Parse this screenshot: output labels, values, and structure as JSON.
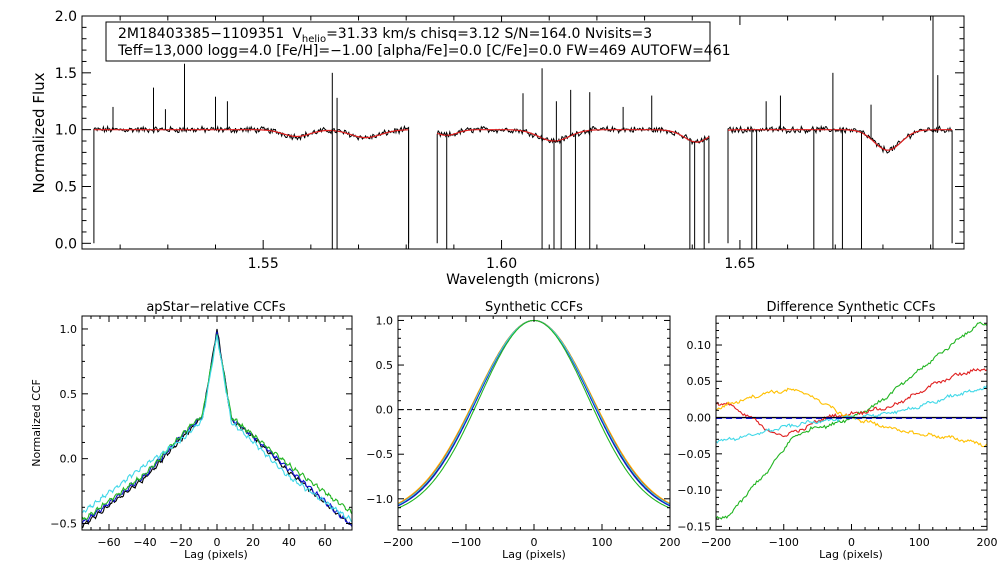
{
  "chart_data": [
    {
      "type": "line",
      "id": "spectrum",
      "xlabel": "Wavelength (microns)",
      "ylabel": "Normalized Flux",
      "xlim": [
        1.512,
        1.697
      ],
      "ylim": [
        -0.05,
        2.0
      ],
      "xticks": [
        1.55,
        1.6,
        1.65
      ],
      "xtick_labels": [
        "1.55",
        "1.60",
        "1.65"
      ],
      "yticks": [
        0.0,
        0.5,
        1.0,
        1.5,
        2.0
      ],
      "ytick_labels": [
        "0.0",
        "0.5",
        "1.0",
        "1.5",
        "2.0"
      ],
      "info_box": {
        "star_id": "2M18403385−1109351",
        "vhelio_label": "V",
        "vhelio_sub": "helio",
        "line1_rest": "=31.33 km/s  chisq=3.12  S/N=164.0  Nvisits=3",
        "line2": "Teff=13,000 logg=4.0 [Fe/H]=−1.00 [alpha/Fe]=0.0 [C/Fe]=0.0 FW=469 AUTOFW=461"
      },
      "chips": [
        [
          1.5145,
          1.5805
        ],
        [
          1.5865,
          1.6435
        ],
        [
          1.6475,
          1.6945
        ]
      ],
      "absorption_lines": [
        {
          "center": 1.557,
          "width": 0.004,
          "depth": 0.06
        },
        {
          "center": 1.5715,
          "width": 0.0045,
          "depth": 0.07
        },
        {
          "center": 1.5885,
          "width": 0.003,
          "depth": 0.05
        },
        {
          "center": 1.611,
          "width": 0.0045,
          "depth": 0.1
        },
        {
          "center": 1.6407,
          "width": 0.004,
          "depth": 0.07
        },
        {
          "center": 1.6411,
          "width": 0.003,
          "depth": 0.04
        },
        {
          "center": 1.681,
          "width": 0.004,
          "depth": 0.18
        }
      ],
      "emission_spikes": [
        {
          "x": 1.5185,
          "y": 1.2
        },
        {
          "x": 1.527,
          "y": 1.37
        },
        {
          "x": 1.5295,
          "y": 1.18
        },
        {
          "x": 1.5335,
          "y": 1.58
        },
        {
          "x": 1.54,
          "y": 1.29
        },
        {
          "x": 1.5425,
          "y": 1.25
        },
        {
          "x": 1.5645,
          "y": 1.5
        },
        {
          "x": 1.5655,
          "y": 1.28
        },
        {
          "x": 1.6045,
          "y": 1.32
        },
        {
          "x": 1.6085,
          "y": 1.54
        },
        {
          "x": 1.6115,
          "y": 1.25
        },
        {
          "x": 1.6145,
          "y": 1.35
        },
        {
          "x": 1.6185,
          "y": 1.33
        },
        {
          "x": 1.6255,
          "y": 1.2
        },
        {
          "x": 1.6315,
          "y": 1.3
        },
        {
          "x": 1.6555,
          "y": 1.25
        },
        {
          "x": 1.6585,
          "y": 1.3
        },
        {
          "x": 1.6695,
          "y": 1.5
        },
        {
          "x": 1.6775,
          "y": 1.22
        },
        {
          "x": 1.6905,
          "y": 2.0
        },
        {
          "x": 1.6915,
          "y": 1.48
        }
      ],
      "drop_lines": [
        1.5645,
        1.5655,
        1.5805,
        1.5885,
        1.6085,
        1.611,
        1.6125,
        1.6155,
        1.6185,
        1.6395,
        1.6405,
        1.6425,
        1.6525,
        1.6535,
        1.6655,
        1.6695,
        1.6715,
        1.6755,
        1.6905
      ],
      "series": [
        {
          "name": "observed",
          "color": "#000000"
        },
        {
          "name": "model",
          "color": "#e02020"
        }
      ]
    },
    {
      "type": "line",
      "id": "ccf1",
      "title": "apStar−relative CCFs",
      "xlabel": "Lag (pixels)",
      "ylabel": "Normalized CCF",
      "xlim": [
        -75,
        75
      ],
      "ylim": [
        -0.55,
        1.1
      ],
      "xticks": [
        -60,
        -40,
        -20,
        0,
        20,
        40,
        60
      ],
      "xtick_labels": [
        "−60",
        "−40",
        "−20",
        "0",
        "20",
        "40",
        "60"
      ],
      "yticks": [
        -0.5,
        0.0,
        0.5,
        1.0
      ],
      "ytick_labels": [
        "−0.5",
        "0.0",
        "0.5",
        "1.0"
      ],
      "series": [
        {
          "name": "visit1",
          "color": "#000000",
          "anchors": [
            [
              -75,
              -0.52
            ],
            [
              -40,
              -0.15
            ],
            [
              -20,
              0.15
            ],
            [
              -8,
              0.32
            ],
            [
              0,
              1.0
            ],
            [
              8,
              0.3
            ],
            [
              20,
              0.17
            ],
            [
              40,
              -0.1
            ],
            [
              75,
              -0.52
            ]
          ]
        },
        {
          "name": "visit2",
          "color": "#1010d0",
          "anchors": [
            [
              -75,
              -0.5
            ],
            [
              -40,
              -0.13
            ],
            [
              -20,
              0.17
            ],
            [
              -8,
              0.33
            ],
            [
              0,
              0.98
            ],
            [
              8,
              0.31
            ],
            [
              20,
              0.17
            ],
            [
              40,
              -0.08
            ],
            [
              75,
              -0.52
            ]
          ]
        },
        {
          "name": "visit3",
          "color": "#22b522",
          "anchors": [
            [
              -75,
              -0.48
            ],
            [
              -40,
              -0.12
            ],
            [
              -20,
              0.18
            ],
            [
              -8,
              0.34
            ],
            [
              0,
              0.96
            ],
            [
              8,
              0.32
            ],
            [
              20,
              0.18
            ],
            [
              40,
              -0.05
            ],
            [
              75,
              -0.42
            ]
          ]
        },
        {
          "name": "visit4",
          "color": "#40d8e8",
          "anchors": [
            [
              -75,
              -0.42
            ],
            [
              -40,
              -0.05
            ],
            [
              -20,
              0.14
            ],
            [
              -8,
              0.3
            ],
            [
              0,
              0.95
            ],
            [
              8,
              0.28
            ],
            [
              20,
              0.13
            ],
            [
              40,
              -0.14
            ],
            [
              75,
              -0.48
            ]
          ]
        }
      ]
    },
    {
      "type": "line",
      "id": "ccf2",
      "title": "Synthetic CCFs",
      "xlabel": "Lag (pixels)",
      "ylabel": "",
      "xlim": [
        -200,
        200
      ],
      "ylim": [
        -1.35,
        1.05
      ],
      "xticks": [
        -200,
        -100,
        0,
        100,
        200
      ],
      "xtick_labels": [
        "−200",
        "−100",
        "0",
        "100",
        "200"
      ],
      "yticks": [
        -1.0,
        -0.5,
        0.0,
        0.5,
        1.0
      ],
      "ytick_labels": [
        "−1.0",
        "−0.5",
        "0.0",
        "0.5",
        "1.0"
      ],
      "zero_line": true,
      "series": [
        {
          "name": "s1",
          "color": "#000000",
          "sigma": 84
        },
        {
          "name": "s2",
          "color": "#1010d0",
          "sigma": 83
        },
        {
          "name": "s3",
          "color": "#ffc000",
          "sigma": 86
        },
        {
          "name": "s4",
          "color": "#e02020",
          "sigma": 85
        },
        {
          "name": "s5",
          "color": "#40d8e8",
          "sigma": 84.5
        },
        {
          "name": "s6",
          "color": "#22b522",
          "sigma": 80
        }
      ]
    },
    {
      "type": "line",
      "id": "ccf3",
      "title": "Difference Synthetic CCFs",
      "xlabel": "Lag (pixels)",
      "ylabel": "",
      "xlim": [
        -200,
        200
      ],
      "ylim": [
        -0.155,
        0.14
      ],
      "xticks": [
        -200,
        -100,
        0,
        100,
        200
      ],
      "xtick_labels": [
        "−200",
        "−100",
        "0",
        "100",
        "200"
      ],
      "yticks": [
        -0.15,
        -0.1,
        -0.05,
        0.0,
        0.05,
        0.1
      ],
      "ytick_labels": [
        "−0.15",
        "−0.10",
        "−0.05",
        "0.00",
        "0.05",
        "0.10"
      ],
      "series": [
        {
          "name": "green",
          "color": "#22b522",
          "anchors": [
            [
              -200,
              -0.14
            ],
            [
              -180,
              -0.135
            ],
            [
              -150,
              -0.1
            ],
            [
              -120,
              -0.07
            ],
            [
              -90,
              -0.03
            ],
            [
              -60,
              -0.015
            ],
            [
              -30,
              -0.01
            ],
            [
              0,
              0.0
            ],
            [
              40,
              0.02
            ],
            [
              80,
              0.05
            ],
            [
              120,
              0.08
            ],
            [
              160,
              0.11
            ],
            [
              190,
              0.13
            ],
            [
              200,
              0.128
            ]
          ]
        },
        {
          "name": "red",
          "color": "#e02020",
          "anchors": [
            [
              -200,
              0.02
            ],
            [
              -180,
              0.018
            ],
            [
              -160,
              0.005
            ],
            [
              -140,
              -0.005
            ],
            [
              -120,
              -0.02
            ],
            [
              -100,
              -0.025
            ],
            [
              -70,
              -0.015
            ],
            [
              -40,
              0.0
            ],
            [
              0,
              0.005
            ],
            [
              60,
              0.015
            ],
            [
              120,
              0.045
            ],
            [
              160,
              0.06
            ],
            [
              200,
              0.068
            ]
          ]
        },
        {
          "name": "orange",
          "color": "#ffc000",
          "anchors": [
            [
              -200,
              0.012
            ],
            [
              -160,
              0.025
            ],
            [
              -120,
              0.035
            ],
            [
              -80,
              0.038
            ],
            [
              -50,
              0.025
            ],
            [
              -20,
              0.008
            ],
            [
              0,
              0.0
            ],
            [
              40,
              -0.01
            ],
            [
              80,
              -0.02
            ],
            [
              120,
              -0.025
            ],
            [
              160,
              -0.03
            ],
            [
              200,
              -0.038
            ]
          ]
        },
        {
          "name": "cyan",
          "color": "#40d8e8",
          "anchors": [
            [
              -200,
              -0.033
            ],
            [
              -150,
              -0.025
            ],
            [
              -100,
              -0.013
            ],
            [
              -50,
              -0.005
            ],
            [
              0,
              0.0
            ],
            [
              50,
              0.005
            ],
            [
              100,
              0.015
            ],
            [
              150,
              0.03
            ],
            [
              200,
              0.042
            ]
          ]
        },
        {
          "name": "black",
          "color": "#000000",
          "anchors": [
            [
              -200,
              0.0
            ],
            [
              200,
              0.0
            ]
          ]
        },
        {
          "name": "blue",
          "color": "#1010d0",
          "anchors": [
            [
              -200,
              -0.001
            ],
            [
              200,
              -0.001
            ]
          ]
        }
      ]
    }
  ]
}
